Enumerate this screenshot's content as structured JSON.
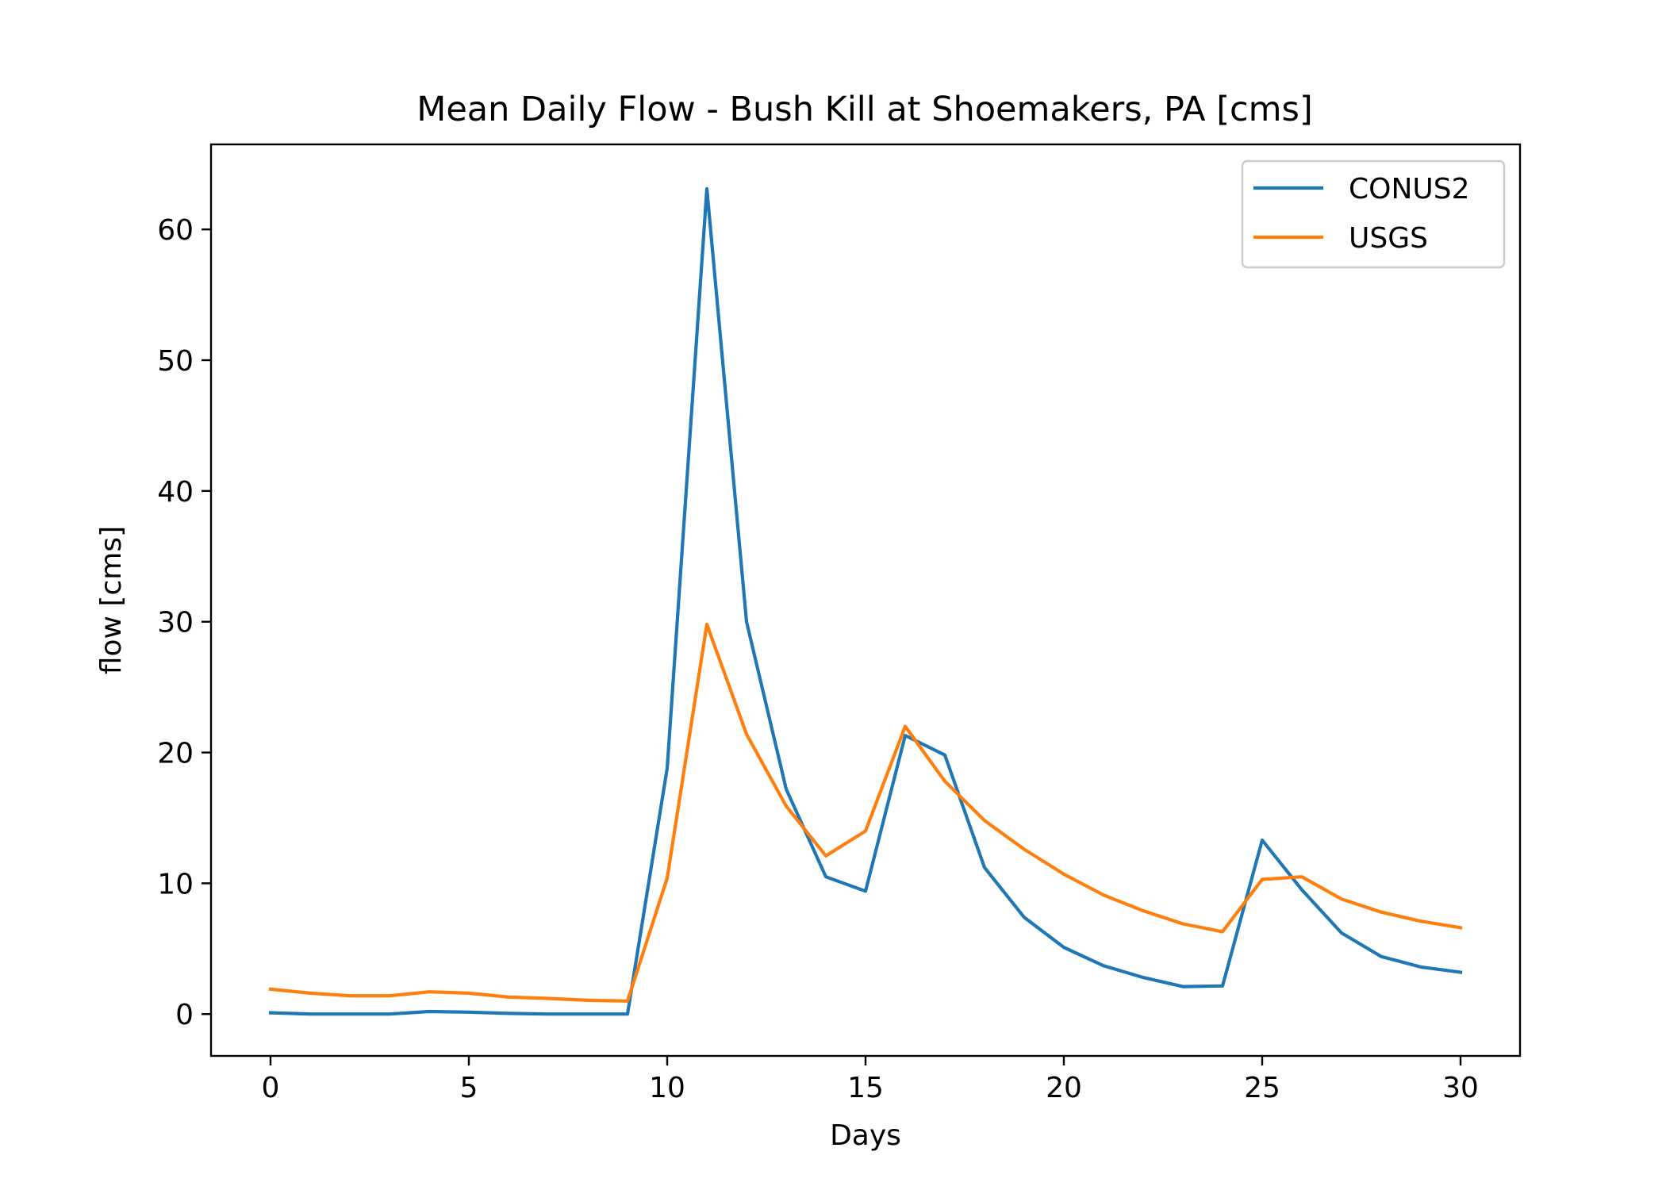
{
  "chart_data": {
    "type": "line",
    "title": "Mean Daily Flow - Bush Kill at Shoemakers, PA [cms]",
    "xlabel": "Days",
    "ylabel": "flow [cms]",
    "xlim": [
      -1.5,
      31.5
    ],
    "ylim": [
      -3.2,
      66.5
    ],
    "xticks": [
      0,
      5,
      10,
      15,
      20,
      25,
      30
    ],
    "yticks": [
      0,
      10,
      20,
      30,
      40,
      50,
      60
    ],
    "grid": false,
    "legend_position": "top-right",
    "x": [
      0,
      1,
      2,
      3,
      4,
      5,
      6,
      7,
      8,
      9,
      10,
      11,
      12,
      13,
      14,
      15,
      16,
      17,
      18,
      19,
      20,
      21,
      22,
      23,
      24,
      25,
      26,
      27,
      28,
      29,
      30
    ],
    "series": [
      {
        "name": "CONUS2",
        "color": "#1f77b4",
        "values": [
          0.1,
          0.0,
          0.0,
          0.0,
          0.2,
          0.15,
          0.05,
          0.0,
          0.0,
          0.0,
          18.8,
          63.1,
          30.0,
          17.2,
          10.5,
          9.4,
          21.3,
          19.8,
          11.2,
          7.4,
          5.1,
          3.7,
          2.8,
          2.1,
          2.15,
          13.3,
          9.5,
          6.2,
          4.4,
          3.6,
          3.2
        ]
      },
      {
        "name": "USGS",
        "color": "#ff7f0e",
        "values": [
          1.9,
          1.6,
          1.4,
          1.4,
          1.7,
          1.6,
          1.3,
          1.2,
          1.05,
          1.0,
          10.4,
          29.8,
          21.4,
          15.9,
          12.1,
          14.0,
          22.0,
          17.8,
          14.8,
          12.6,
          10.7,
          9.1,
          7.9,
          6.9,
          6.3,
          10.3,
          10.5,
          8.8,
          7.8,
          7.1,
          6.6
        ]
      }
    ]
  }
}
